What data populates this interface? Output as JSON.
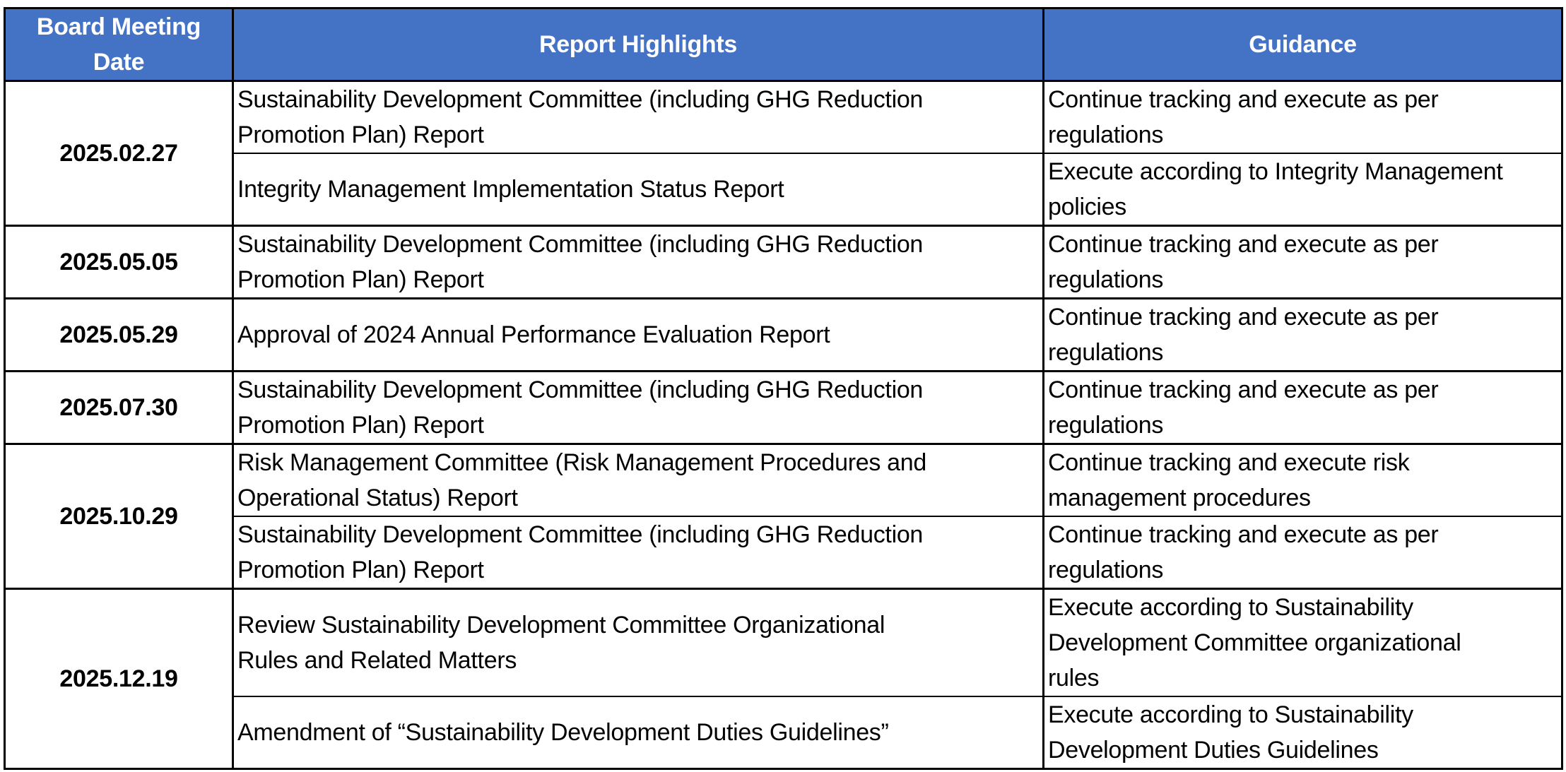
{
  "table": {
    "headers": {
      "date": "Board Meeting\nDate",
      "highlights": "Report Highlights",
      "guidance": "Guidance"
    },
    "groups": [
      {
        "date": "2025.02.27",
        "rows": [
          {
            "highlight": [
              "Sustainability Development Committee (including GHG Reduction",
              "Promotion Plan) Report"
            ],
            "guidance": [
              "Continue tracking and execute as per",
              "regulations"
            ]
          },
          {
            "highlight": [
              "Integrity Management Implementation Status Report"
            ],
            "guidance": [
              "Execute according to Integrity Management",
              "policies"
            ]
          }
        ]
      },
      {
        "date": "2025.05.05",
        "rows": [
          {
            "highlight": [
              "Sustainability Development Committee (including GHG Reduction",
              "Promotion Plan) Report"
            ],
            "guidance": [
              "Continue tracking and execute as per",
              "regulations"
            ]
          }
        ]
      },
      {
        "date": "2025.05.29",
        "rows": [
          {
            "highlight": [
              "Approval of 2024 Annual Performance Evaluation Report"
            ],
            "guidance": [
              "Continue tracking and execute as per",
              "regulations"
            ]
          }
        ]
      },
      {
        "date": "2025.07.30",
        "rows": [
          {
            "highlight": [
              "Sustainability Development Committee (including GHG Reduction",
              "Promotion Plan) Report"
            ],
            "guidance": [
              "Continue tracking and execute as per",
              "regulations"
            ]
          }
        ]
      },
      {
        "date": "2025.10.29",
        "rows": [
          {
            "highlight": [
              "Risk Management Committee (Risk Management Procedures and",
              "Operational Status) Report"
            ],
            "guidance": [
              "Continue tracking and execute risk",
              "management procedures"
            ]
          },
          {
            "highlight": [
              "Sustainability Development Committee (including GHG Reduction",
              "Promotion Plan) Report"
            ],
            "guidance": [
              "Continue tracking and execute as per",
              "regulations"
            ]
          }
        ]
      },
      {
        "date": "2025.12.19",
        "rows": [
          {
            "highlight": [
              "Review Sustainability Development Committee Organizational",
              "Rules and Related Matters"
            ],
            "guidance": [
              "Execute according to Sustainability",
              "Development Committee organizational",
              "rules"
            ]
          },
          {
            "highlight": [
              "Amendment of “Sustainability Development Duties Guidelines”"
            ],
            "guidance": [
              "Execute according to Sustainability",
              "Development Duties Guidelines"
            ]
          }
        ]
      }
    ]
  },
  "colors": {
    "header_bg": "#4472C4",
    "header_text": "#FFFFFF",
    "border": "#000000",
    "body_text": "#000000",
    "background": "#FFFFFF"
  }
}
